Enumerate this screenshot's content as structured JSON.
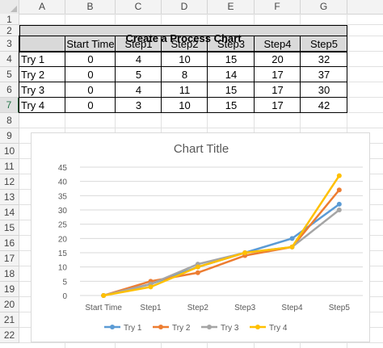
{
  "spreadsheet": {
    "columns": [
      "A",
      "B",
      "C",
      "D",
      "E",
      "F",
      "G"
    ],
    "rows": [
      "1",
      "2",
      "3",
      "4",
      "5",
      "6",
      "7",
      "8",
      "9",
      "10",
      "11",
      "12",
      "13",
      "14",
      "15",
      "16",
      "17",
      "18",
      "19",
      "20",
      "21",
      "22"
    ],
    "active_row": "7",
    "title": "Create a Process Chart",
    "table": {
      "header": [
        "",
        "Start Time",
        "Step1",
        "Step2",
        "Step3",
        "Step4",
        "Step5"
      ],
      "rows": [
        [
          "Try 1",
          "0",
          "4",
          "10",
          "15",
          "20",
          "32"
        ],
        [
          "Try 2",
          "0",
          "5",
          "8",
          "14",
          "17",
          "37"
        ],
        [
          "Try 3",
          "0",
          "4",
          "11",
          "15",
          "17",
          "30"
        ],
        [
          "Try 4",
          "0",
          "3",
          "10",
          "15",
          "17",
          "42"
        ]
      ]
    }
  },
  "chart_data": {
    "type": "line",
    "title": "Chart Title",
    "categories": [
      "Start Time",
      "Step1",
      "Step2",
      "Step3",
      "Step4",
      "Step5"
    ],
    "ylim": [
      0,
      45
    ],
    "yticks": [
      "0",
      "5",
      "10",
      "15",
      "20",
      "25",
      "30",
      "35",
      "40",
      "45"
    ],
    "grid": true,
    "legend_position": "bottom",
    "series": [
      {
        "name": "Try 1",
        "values": [
          0,
          4,
          10,
          15,
          20,
          32
        ],
        "color": "#5b9bd5"
      },
      {
        "name": "Try 2",
        "values": [
          0,
          5,
          8,
          14,
          17,
          37
        ],
        "color": "#ed7d31"
      },
      {
        "name": "Try 3",
        "values": [
          0,
          4,
          11,
          15,
          17,
          30
        ],
        "color": "#a5a5a5"
      },
      {
        "name": "Try 4",
        "values": [
          0,
          3,
          10,
          15,
          17,
          42
        ],
        "color": "#ffc000"
      }
    ]
  }
}
